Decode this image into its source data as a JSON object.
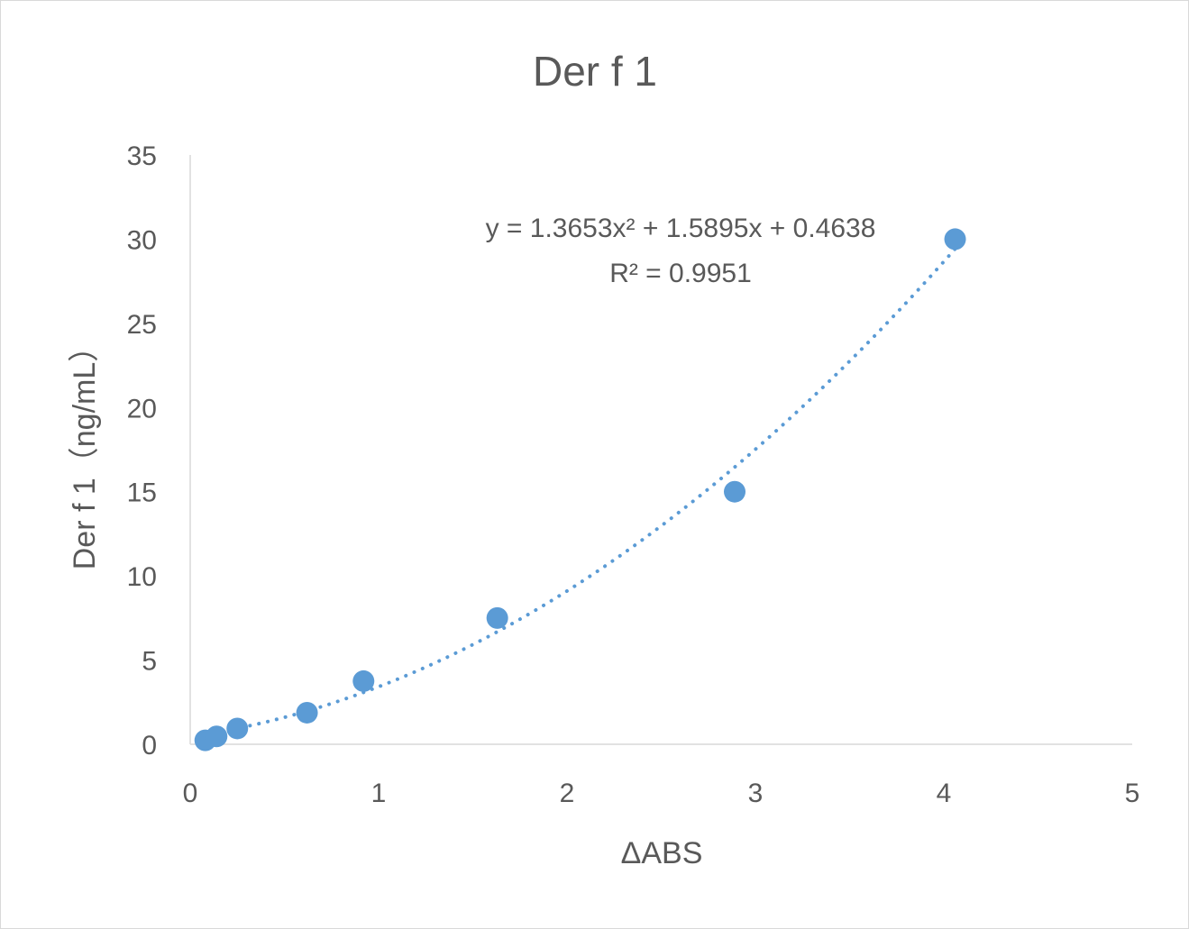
{
  "chart_data": {
    "type": "scatter",
    "title": "Der f 1",
    "xlabel": "ΔABS",
    "ylabel": "Der f 1（ng/mL）",
    "xlim": [
      0,
      5
    ],
    "ylim": [
      0,
      35
    ],
    "x_ticks": [
      "0",
      "1",
      "2",
      "3",
      "4",
      "5"
    ],
    "y_ticks": [
      "0",
      "5",
      "10",
      "15",
      "20",
      "25",
      "30",
      "35"
    ],
    "grid": false,
    "legend": "none",
    "series": [
      {
        "points": [
          {
            "x": 0.08,
            "y": 0.234
          },
          {
            "x": 0.14,
            "y": 0.469
          },
          {
            "x": 0.25,
            "y": 0.938
          },
          {
            "x": 0.62,
            "y": 1.875
          },
          {
            "x": 0.92,
            "y": 3.75
          },
          {
            "x": 1.63,
            "y": 7.5
          },
          {
            "x": 2.89,
            "y": 15
          },
          {
            "x": 4.06,
            "y": 30
          }
        ],
        "color": "#5b9bd5"
      }
    ],
    "trendline": {
      "type": "polynomial",
      "coefficients": [
        1.3653,
        1.5895,
        0.4638
      ],
      "equation_label": "y = 1.3653x² + 1.5895x + 0.4638",
      "r_squared_label": "R² = 0.9951",
      "style": "dotted",
      "color": "#5b9bd5"
    }
  }
}
